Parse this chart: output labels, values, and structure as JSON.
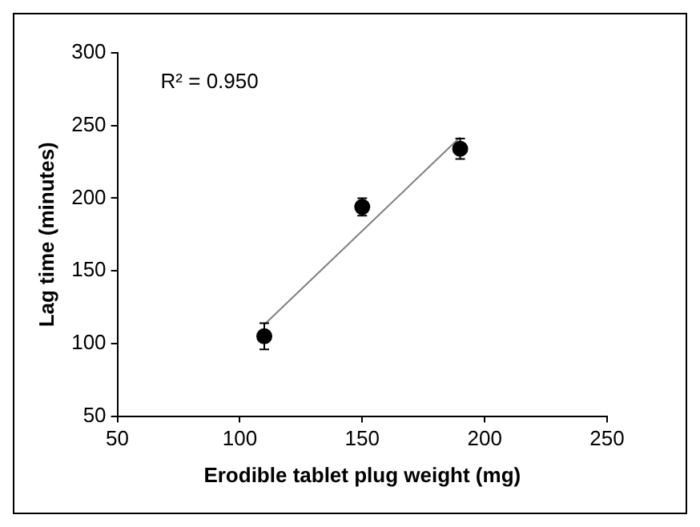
{
  "chart_data": {
    "type": "scatter",
    "xlabel": "Erodible tablet plug weight (mg)",
    "ylabel": "Lag time (minutes)",
    "annotations": [
      "R² = 0.950"
    ],
    "xlim": [
      50,
      250
    ],
    "xticks": [
      50,
      100,
      150,
      200,
      250
    ],
    "ylim": [
      50,
      300
    ],
    "yticks": [
      50,
      100,
      150,
      200,
      250,
      300
    ],
    "grid": false,
    "marker": "circle",
    "series": [
      {
        "color": "#000000",
        "x": [
          110,
          150,
          190
        ],
        "values": [
          105,
          194,
          234
        ],
        "errors": [
          9,
          6,
          7
        ]
      },
      {
        "type": "line",
        "color": "#808080",
        "x": [
          110,
          190
        ],
        "values": [
          113,
          242
        ],
        "marker": "none"
      }
    ]
  }
}
